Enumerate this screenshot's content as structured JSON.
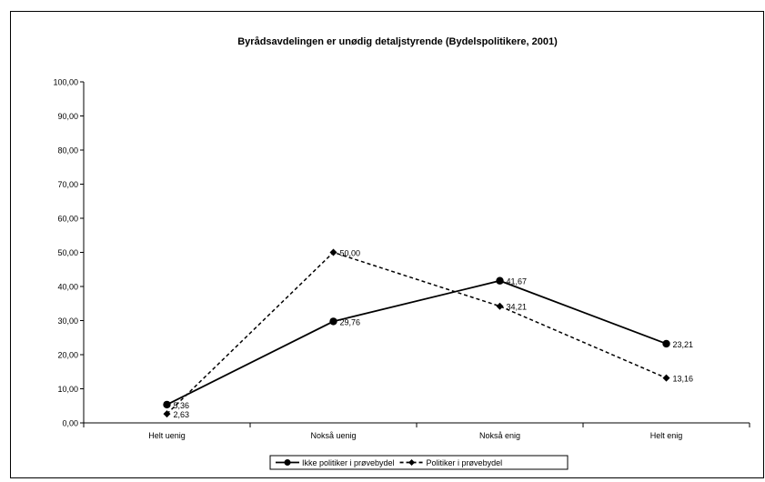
{
  "chart_data": {
    "type": "line",
    "title": "Byrådsavdelingen er unødig detaljstyrende (Bydelspolitikere, 2001)",
    "xlabel": "",
    "ylabel": "",
    "categories": [
      "Helt uenig",
      "Nokså uenig",
      "Nokså enig",
      "Helt enig"
    ],
    "ylim": [
      0,
      100
    ],
    "yticks": [
      "0,00",
      "10,00",
      "20,00",
      "30,00",
      "40,00",
      "50,00",
      "60,00",
      "70,00",
      "80,00",
      "90,00",
      "100,00"
    ],
    "grid": false,
    "legend_position": "bottom",
    "series": [
      {
        "name": "Ikke politiker i prøvebydel",
        "values": [
          5.36,
          29.76,
          41.67,
          23.21
        ],
        "labels": [
          "5,36",
          "29,76",
          "41,67",
          "23,21"
        ],
        "line_style": "solid",
        "marker": "circle",
        "color": "#000000"
      },
      {
        "name": "Politiker i prøvebydel",
        "values": [
          2.63,
          50.0,
          34.21,
          13.16
        ],
        "labels": [
          "2,63",
          "50,00",
          "34,21",
          "13,16"
        ],
        "line_style": "dashed",
        "marker": "diamond",
        "color": "#000000"
      }
    ]
  }
}
